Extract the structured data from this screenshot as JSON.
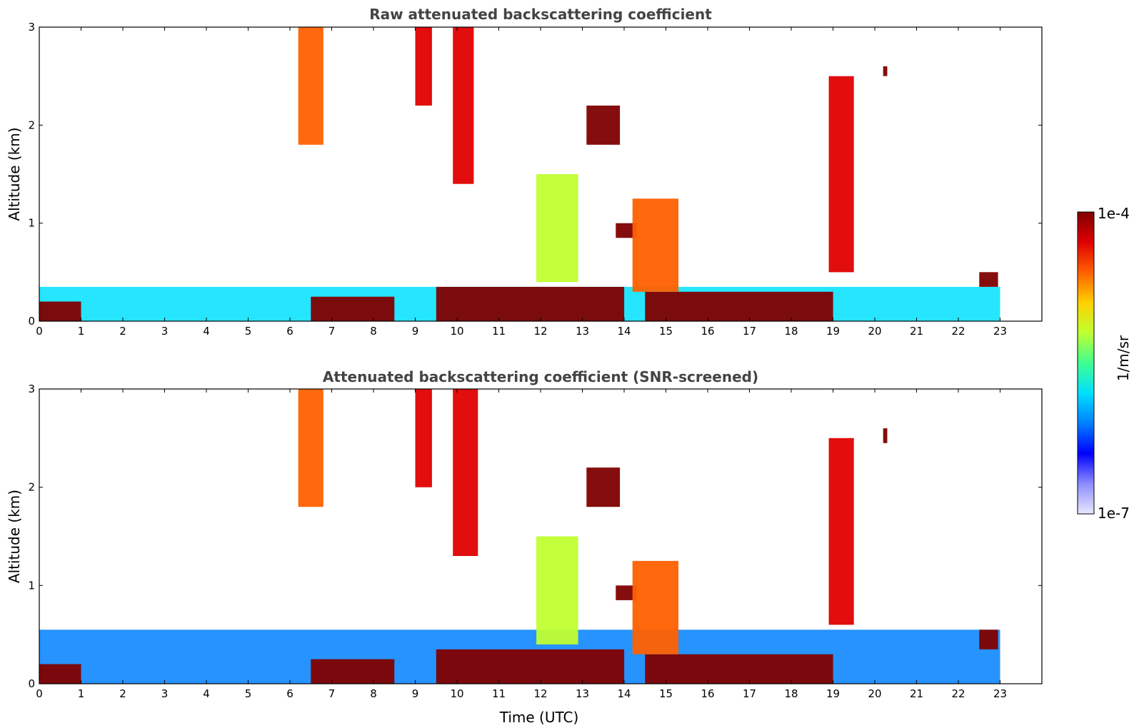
{
  "chart_data": [
    {
      "type": "heatmap",
      "title": "Raw attenuated backscattering coefficient",
      "xlabel": "",
      "ylabel": "Altitude (km)",
      "xlim": [
        0,
        24
      ],
      "ylim": [
        0,
        3
      ],
      "xticks": [
        "0",
        "1",
        "2",
        "3",
        "4",
        "5",
        "6",
        "7",
        "8",
        "9",
        "10",
        "11",
        "12",
        "13",
        "14",
        "15",
        "16",
        "17",
        "18",
        "19",
        "20",
        "21",
        "22",
        "23"
      ],
      "yticks": [
        "0",
        "1",
        "2",
        "3"
      ],
      "data_end_time": 23,
      "layers": [
        {
          "feature": "boundary-layer aerosol",
          "t_start": 0,
          "t_end": 23,
          "top_km": 0.35,
          "level": 0.4
        },
        {
          "feature": "near-surface layer",
          "t_start": 0,
          "t_end": 1,
          "top_km": 0.2,
          "level": 0.95
        },
        {
          "feature": "aerosol layer",
          "t_start": 6.5,
          "t_end": 8.5,
          "top_km": 0.25,
          "level": 1.0
        },
        {
          "feature": "aerosol layer",
          "t_start": 9.5,
          "t_end": 14,
          "top_km": 0.35,
          "level": 1.0
        },
        {
          "feature": "aerosol layer",
          "t_start": 14.5,
          "t_end": 19,
          "top_km": 0.3,
          "level": 1.0
        },
        {
          "feature": "cirrus fall streak",
          "t_start": 6.2,
          "t_end": 6.8,
          "bottom_km": 1.8,
          "top_km": 3.0,
          "level": 0.8
        },
        {
          "feature": "cirrus fall streak",
          "t_start": 9.0,
          "t_end": 9.4,
          "bottom_km": 2.2,
          "top_km": 3.0,
          "level": 0.85
        },
        {
          "feature": "cirrus fall streak",
          "t_start": 9.9,
          "t_end": 10.4,
          "bottom_km": 1.4,
          "top_km": 3.0,
          "level": 0.9
        },
        {
          "feature": "cloud",
          "t_start": 13.1,
          "t_end": 13.9,
          "bottom_km": 1.8,
          "top_km": 2.2,
          "level": 1.0
        },
        {
          "feature": "cloud",
          "t_start": 13.8,
          "t_end": 14.3,
          "bottom_km": 0.85,
          "top_km": 1.0,
          "level": 1.0
        },
        {
          "feature": "convective plume",
          "t_start": 14.2,
          "t_end": 15.3,
          "bottom_km": 0.3,
          "top_km": 1.25,
          "level": 0.8
        },
        {
          "feature": "convective plume",
          "t_start": 11.9,
          "t_end": 12.9,
          "bottom_km": 0.4,
          "top_km": 1.5,
          "level": 0.6
        },
        {
          "feature": "cirrus",
          "t_start": 18.9,
          "t_end": 19.5,
          "bottom_km": 0.5,
          "top_km": 2.5,
          "level": 0.85
        },
        {
          "feature": "cloud",
          "t_start": 20.2,
          "t_end": 20.3,
          "bottom_km": 2.5,
          "top_km": 2.6,
          "level": 1.0
        },
        {
          "feature": "aerosol layer",
          "t_start": 22.5,
          "t_end": 22.95,
          "bottom_km": 0.35,
          "top_km": 0.5,
          "level": 1.0
        }
      ]
    },
    {
      "type": "heatmap",
      "title": "Attenuated backscattering coefficient (SNR-screened)",
      "xlabel": "Time (UTC)",
      "ylabel": "Altitude (km)",
      "xlim": [
        0,
        24
      ],
      "ylim": [
        0,
        3
      ],
      "xticks": [
        "0",
        "1",
        "2",
        "3",
        "4",
        "5",
        "6",
        "7",
        "8",
        "9",
        "10",
        "11",
        "12",
        "13",
        "14",
        "15",
        "16",
        "17",
        "18",
        "19",
        "20",
        "21",
        "22",
        "23"
      ],
      "yticks": [
        "0",
        "1",
        "2",
        "3"
      ],
      "data_end_time": 23,
      "layers": [
        {
          "feature": "boundary-layer aerosol",
          "t_start": 0,
          "t_end": 23,
          "top_km": 0.55,
          "level": 0.3
        },
        {
          "feature": "near-surface layer",
          "t_start": 0,
          "t_end": 1,
          "top_km": 0.2,
          "level": 1.0
        },
        {
          "feature": "aerosol layer",
          "t_start": 6.5,
          "t_end": 8.5,
          "top_km": 0.25,
          "level": 1.0
        },
        {
          "feature": "aerosol layer",
          "t_start": 9.5,
          "t_end": 14,
          "top_km": 0.35,
          "level": 1.0
        },
        {
          "feature": "aerosol layer",
          "t_start": 14.5,
          "t_end": 19,
          "top_km": 0.3,
          "level": 1.0
        },
        {
          "feature": "cirrus fall streak",
          "t_start": 6.2,
          "t_end": 6.8,
          "bottom_km": 1.8,
          "top_km": 3.0,
          "level": 0.8
        },
        {
          "feature": "cirrus fall streak",
          "t_start": 9.0,
          "t_end": 9.4,
          "bottom_km": 2.0,
          "top_km": 3.0,
          "level": 0.85
        },
        {
          "feature": "cirrus fall streak",
          "t_start": 9.9,
          "t_end": 10.5,
          "bottom_km": 1.3,
          "top_km": 3.0,
          "level": 0.9
        },
        {
          "feature": "cloud",
          "t_start": 13.1,
          "t_end": 13.9,
          "bottom_km": 1.8,
          "top_km": 2.2,
          "level": 1.0
        },
        {
          "feature": "cloud",
          "t_start": 13.8,
          "t_end": 14.3,
          "bottom_km": 0.85,
          "top_km": 1.0,
          "level": 1.0
        },
        {
          "feature": "convective plume",
          "t_start": 14.2,
          "t_end": 15.3,
          "bottom_km": 0.3,
          "top_km": 1.25,
          "level": 0.8
        },
        {
          "feature": "convective plume",
          "t_start": 11.9,
          "t_end": 12.9,
          "bottom_km": 0.4,
          "top_km": 1.5,
          "level": 0.6
        },
        {
          "feature": "cirrus",
          "t_start": 18.9,
          "t_end": 19.5,
          "bottom_km": 0.6,
          "top_km": 2.5,
          "level": 0.85
        },
        {
          "feature": "cloud",
          "t_start": 20.2,
          "t_end": 20.3,
          "bottom_km": 2.45,
          "top_km": 2.6,
          "level": 1.0
        },
        {
          "feature": "aerosol layer",
          "t_start": 22.5,
          "t_end": 22.95,
          "bottom_km": 0.35,
          "top_km": 0.55,
          "level": 1.0
        }
      ]
    }
  ],
  "colorbar": {
    "max_label": "1e-4",
    "min_label": "1e-7",
    "unit_label": "1/m/sr",
    "scale": "log",
    "colormap": "jet",
    "colors": [
      "#e8e8ff",
      "#8c8cff",
      "#0000ff",
      "#0080ff",
      "#00e0ff",
      "#40ff90",
      "#c0ff30",
      "#ffd000",
      "#ff6000",
      "#e00000",
      "#800000"
    ]
  }
}
